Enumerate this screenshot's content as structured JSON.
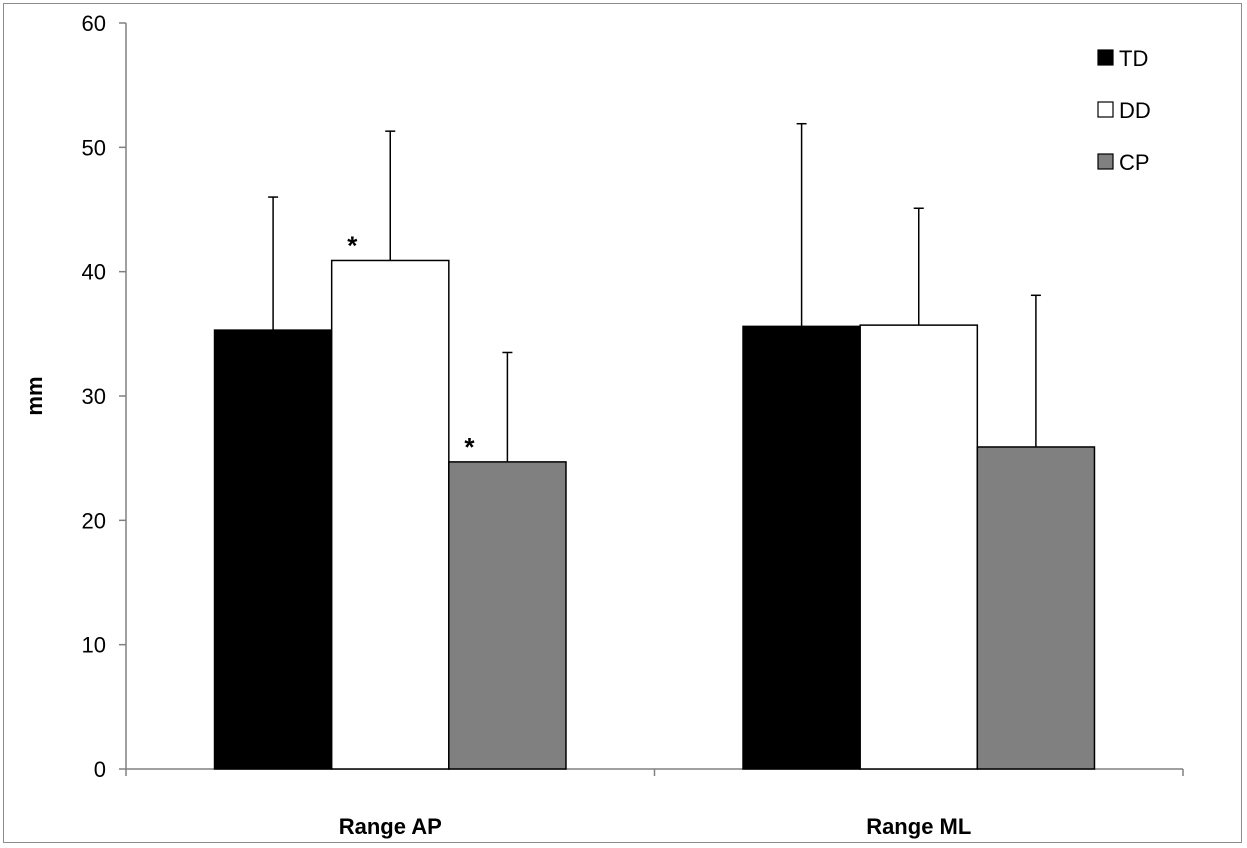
{
  "chart_data": {
    "type": "bar",
    "title": "",
    "xlabel": "",
    "ylabel": "mm",
    "ylim": [
      0,
      60
    ],
    "yticks": [
      0,
      10,
      20,
      30,
      40,
      50,
      60
    ],
    "categories": [
      "Range AP",
      "Range ML"
    ],
    "series": [
      {
        "name": "TD",
        "color": "#000000",
        "values": [
          35.3,
          35.6
        ],
        "error": [
          10.7,
          16.3
        ],
        "significance": [
          "",
          ""
        ]
      },
      {
        "name": "DD",
        "color": "#ffffff",
        "values": [
          40.9,
          35.7
        ],
        "error": [
          10.4,
          9.4
        ],
        "significance": [
          "*",
          ""
        ]
      },
      {
        "name": "CP",
        "color": "#808080",
        "values": [
          24.7,
          25.9
        ],
        "error": [
          8.8,
          12.2
        ],
        "significance": [
          "*",
          ""
        ]
      }
    ],
    "grid": false,
    "legend_position": "top-right"
  }
}
